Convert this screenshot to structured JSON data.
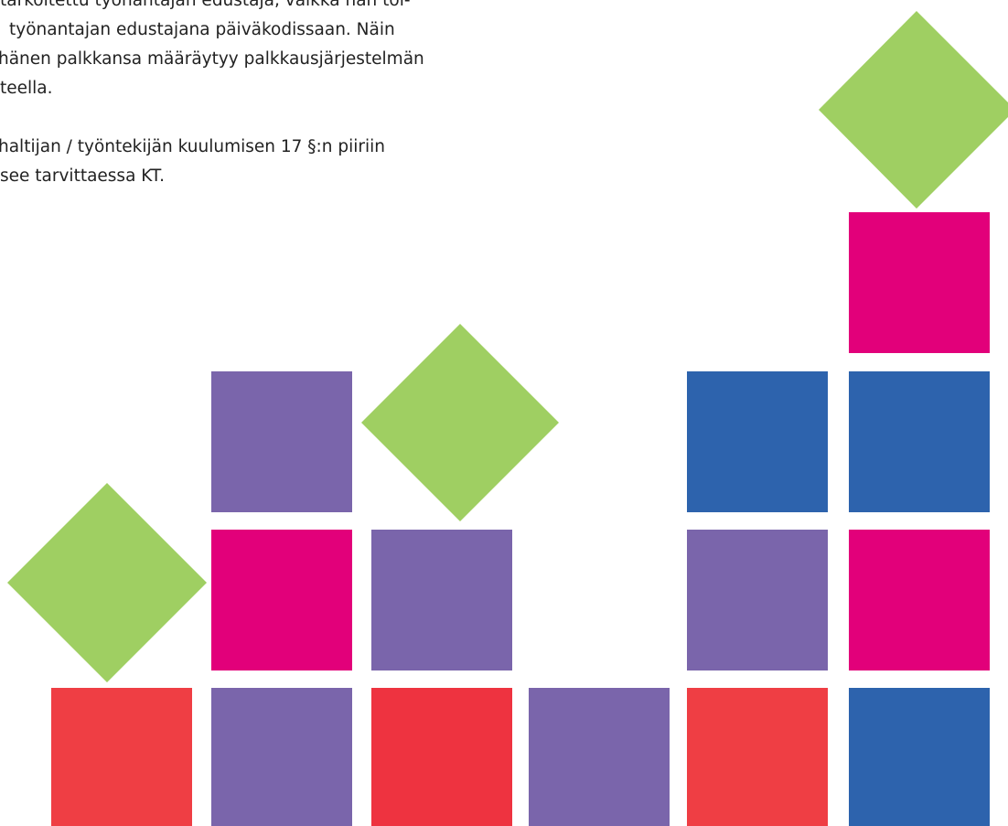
{
  "body": {
    "paragraphs": [
      {
        "lines": [
          "tarkoitettu työnantajan edustaja, vaikka hän toi-",
          "työnantajan edustajana päiväkodissaan. Näin",
          "hänen palkkansa määräytyy palkkausjärjestelmän",
          "teella."
        ]
      },
      {
        "lines": [
          "haltijan / työntekijän kuulumisen 17 §:n piiriin",
          "see tarvittaessa KT."
        ]
      }
    ]
  }
}
